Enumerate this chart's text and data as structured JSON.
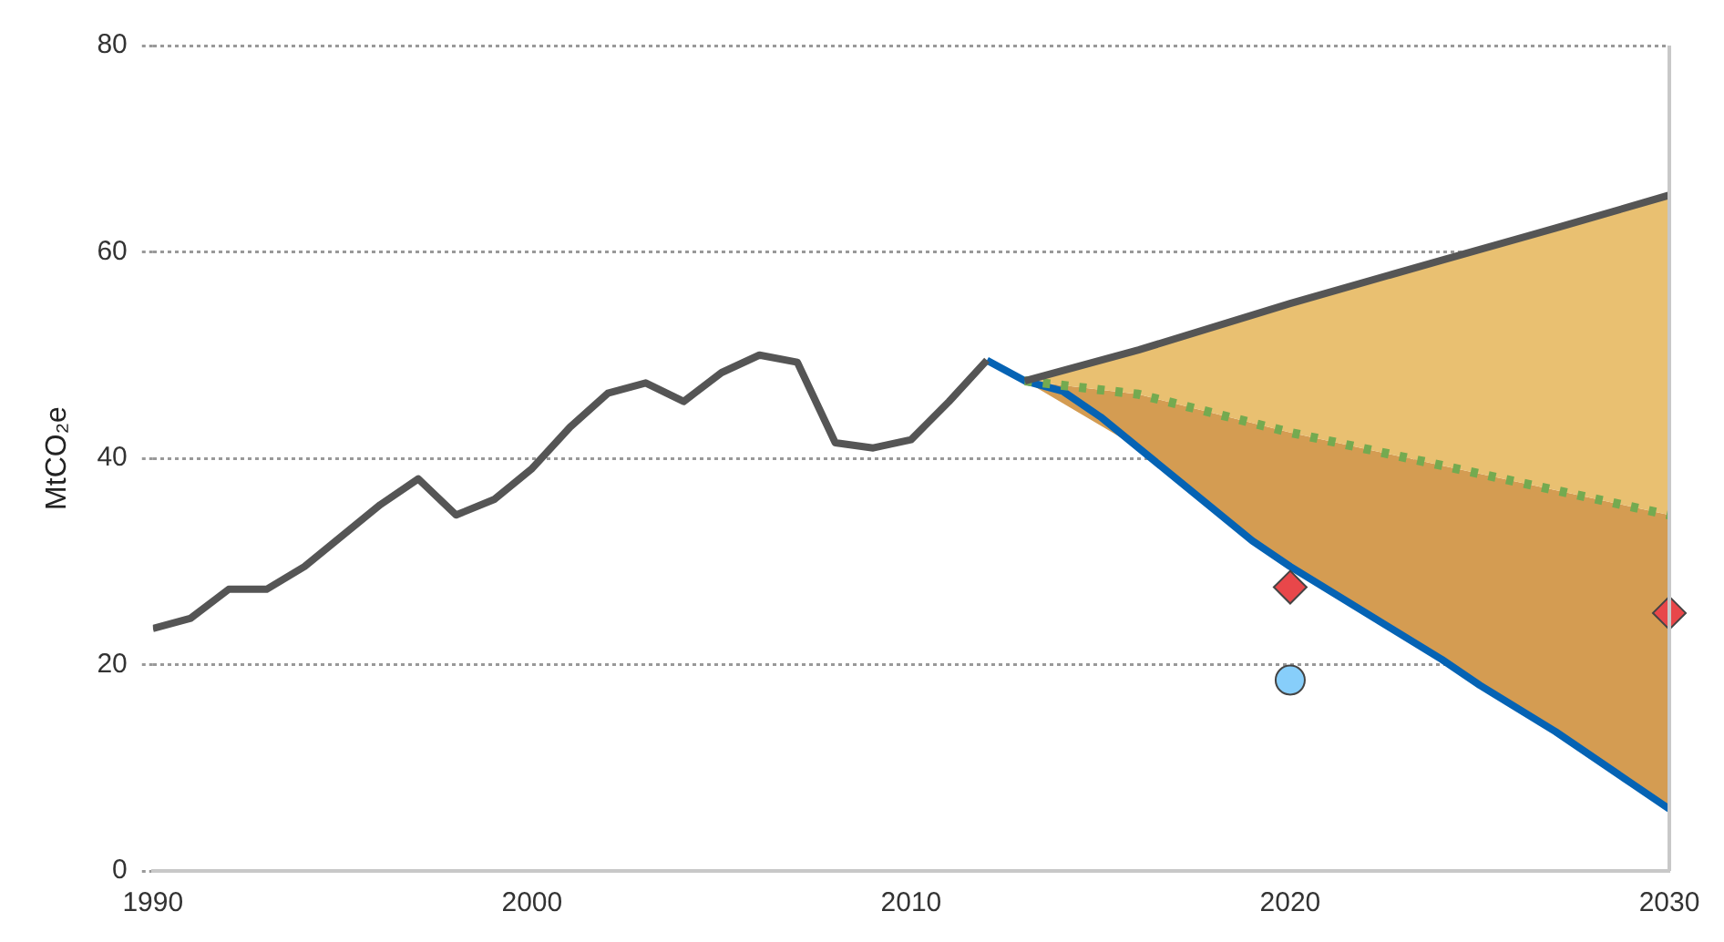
{
  "chart_data": {
    "type": "line",
    "ylabel": "MtCO₂e",
    "xlim": [
      1990,
      2030
    ],
    "ylim": [
      0,
      80
    ],
    "xticks": [
      1990,
      2000,
      2010,
      2020,
      2030
    ],
    "yticks": [
      0,
      20,
      40,
      60,
      80
    ],
    "grid": "y",
    "legend": false,
    "series": [
      {
        "color": "#555555",
        "x": [
          1990,
          1991,
          1992,
          1993,
          1994,
          1995,
          1996,
          1997,
          1998,
          1999,
          2000,
          2001,
          2002,
          2003,
          2004,
          2005,
          2006,
          2007,
          2008,
          2009,
          2010,
          2011,
          2012
        ],
        "values": [
          23.5,
          24.5,
          27.3,
          27.3,
          29.5,
          32.5,
          35.5,
          38,
          34.5,
          36,
          39,
          43,
          46.3,
          47.3,
          45.5,
          48.3,
          50,
          49.3,
          41.5,
          41,
          41.8,
          45.5,
          49.5
        ]
      },
      {
        "color": "#555555",
        "x": [
          2013,
          2016,
          2020,
          2024,
          2027,
          2030
        ],
        "values": [
          47.5,
          50.5,
          55,
          59.2,
          62.3,
          65.5
        ],
        "upper": [
          47.5,
          50.5,
          55,
          59.2,
          62.3,
          65.5
        ],
        "lower": [
          47.5,
          46.2,
          42.5,
          39.3,
          36.9,
          34.5
        ]
      },
      {
        "color": "#74aa50",
        "line_style": "dotted",
        "x": [
          2013,
          2016,
          2020,
          2024,
          2027,
          2030
        ],
        "values": [
          47.5,
          46.2,
          42.5,
          39.3,
          36.9,
          34.5
        ],
        "upper": [
          47.5,
          46.2,
          42.5,
          39.3,
          36.9,
          34.5
        ],
        "lower": [
          47.5,
          41,
          29.5,
          20.5,
          13.5,
          6
        ]
      },
      {
        "color": "#0563b4",
        "x": [
          2012,
          2013,
          2014,
          2015,
          2016,
          2017,
          2018,
          2019,
          2020,
          2022,
          2024,
          2025,
          2027,
          2029,
          2030
        ],
        "values": [
          49.5,
          47.5,
          46.5,
          44,
          41,
          38,
          35,
          32,
          29.5,
          25,
          20.5,
          18,
          13.5,
          8.5,
          6
        ]
      },
      {
        "type": "scatter",
        "color": "#e8474a",
        "marker": "diamond",
        "x": [
          2020,
          2030
        ],
        "values": [
          27.5,
          25
        ]
      },
      {
        "type": "scatter",
        "color": "#87cefa",
        "marker": "circle",
        "x": [
          2020
        ],
        "values": [
          18.5
        ]
      }
    ]
  }
}
